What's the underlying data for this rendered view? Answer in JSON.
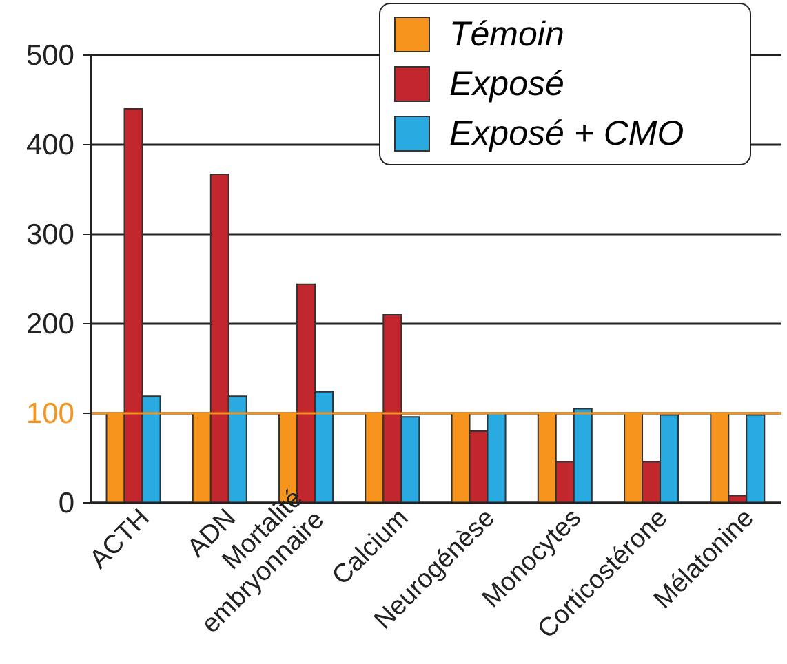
{
  "chart_data": {
    "type": "bar",
    "categories": [
      "ACTH",
      "ADN",
      "Mortalité embryonnaire",
      "Calcium",
      "Neurogénèse",
      "Monocytes",
      "Corticostérone",
      "Mélatonine"
    ],
    "series": [
      {
        "name": "Témoin",
        "color": "#f7941d",
        "values": [
          100,
          100,
          100,
          100,
          100,
          100,
          100,
          100
        ]
      },
      {
        "name": "Exposé",
        "color": "#c1272d",
        "values": [
          440,
          367,
          244,
          210,
          80,
          46,
          46,
          8
        ]
      },
      {
        "name": "Exposé + CMO",
        "color": "#29abe2",
        "values": [
          119,
          119,
          124,
          96,
          100,
          105,
          98,
          98
        ]
      }
    ],
    "ylim": [
      0,
      500
    ],
    "yticks": [
      0,
      100,
      200,
      300,
      400,
      500
    ],
    "grid": "y",
    "legend": "top right",
    "ref_lines": [
      {
        "axis": "y",
        "value": 100,
        "color": "#f7941d"
      }
    ]
  }
}
